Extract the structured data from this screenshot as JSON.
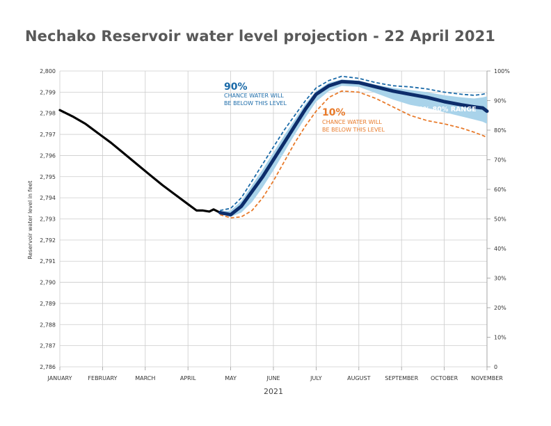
{
  "chart_data": {
    "type": "line",
    "title": "Nechako Reservoir water level projection - 22 April 2021",
    "xlabel": "2021",
    "ylabel": "Reservoir water level in feet",
    "ylim": [
      2786,
      2800
    ],
    "yticks": [
      "2,800",
      "2,799",
      "2,798",
      "2,797",
      "2,796",
      "2,795",
      "2,794",
      "2,793",
      "2,792",
      "2,791",
      "2,790",
      "2,789",
      "2,788",
      "2,787",
      "2,786"
    ],
    "y2ticks": [
      "100%",
      "90%",
      "80%",
      "70%",
      "60%",
      "50%",
      "40%",
      "30%",
      "20%",
      "10%",
      "0"
    ],
    "x_month_labels": [
      "JANUARY",
      "FEBRUARY",
      "MARCH",
      "APRIL",
      "MAY",
      "JUNE",
      "JULY",
      "AUGUST",
      "SEPTEMBER",
      "OCTOBER",
      "NOVEMBER"
    ],
    "grid": true,
    "annotations": {
      "p90_big": "90%",
      "p90_line1": "CHANCE WATER WILL",
      "p90_line2": "BE BELOW THIS LEVEL",
      "p10_big": "10%",
      "p10_line1": "CHANCE WATER WILL",
      "p10_line2": "BE BELOW THIS LEVEL",
      "range": "20%-80% RANGE"
    },
    "colors": {
      "observed": "#000000",
      "median": "#0d2d6b",
      "p90": "#1a6aa8",
      "p10": "#e87a2a",
      "band": "#a9d3ea",
      "grid": "#cccccc"
    },
    "series": [
      {
        "key": "observed",
        "x": [
          0,
          0.3,
          0.6,
          0.9,
          1.2,
          1.5,
          1.8,
          2.1,
          2.4,
          2.7,
          3.0,
          3.2,
          3.35,
          3.5,
          3.6,
          3.75
        ],
        "values": [
          2798.15,
          2797.85,
          2797.5,
          2797.05,
          2796.6,
          2796.1,
          2795.6,
          2795.1,
          2794.6,
          2794.15,
          2793.7,
          2793.4,
          2793.4,
          2793.35,
          2793.45,
          2793.3
        ]
      },
      {
        "key": "median",
        "x": [
          3.75,
          4.0,
          4.25,
          4.5,
          4.75,
          5.0,
          5.25,
          5.5,
          5.75,
          6.0,
          6.3,
          6.6,
          7.0,
          7.4,
          7.8,
          8.2,
          8.6,
          9.0,
          9.4,
          9.7,
          9.9,
          10.0
        ],
        "values": [
          2793.3,
          2793.2,
          2793.6,
          2794.3,
          2795.0,
          2795.8,
          2796.6,
          2797.4,
          2798.2,
          2798.9,
          2799.3,
          2799.5,
          2799.45,
          2799.25,
          2799.05,
          2798.9,
          2798.75,
          2798.55,
          2798.4,
          2798.3,
          2798.25,
          2798.1
        ]
      },
      {
        "key": "p90",
        "x": [
          3.75,
          4.0,
          4.25,
          4.5,
          4.75,
          5.0,
          5.25,
          5.5,
          5.75,
          6.0,
          6.3,
          6.6,
          7.0,
          7.4,
          7.8,
          8.2,
          8.6,
          9.0,
          9.4,
          9.7,
          9.9,
          10.0
        ],
        "values": [
          2793.4,
          2793.5,
          2794.0,
          2794.8,
          2795.6,
          2796.4,
          2797.2,
          2797.9,
          2798.6,
          2799.2,
          2799.55,
          2799.75,
          2799.65,
          2799.45,
          2799.3,
          2799.25,
          2799.15,
          2799.0,
          2798.9,
          2798.85,
          2798.9,
          2798.95
        ]
      },
      {
        "key": "p10",
        "x": [
          3.75,
          4.0,
          4.25,
          4.5,
          4.75,
          5.0,
          5.25,
          5.5,
          5.75,
          6.0,
          6.3,
          6.6,
          7.0,
          7.4,
          7.8,
          8.2,
          8.6,
          9.0,
          9.4,
          9.7,
          9.9,
          10.0
        ],
        "values": [
          2793.2,
          2793.05,
          2793.1,
          2793.4,
          2794.0,
          2794.8,
          2795.7,
          2796.6,
          2797.4,
          2798.1,
          2798.75,
          2799.05,
          2799.0,
          2798.7,
          2798.3,
          2797.9,
          2797.65,
          2797.5,
          2797.3,
          2797.1,
          2796.95,
          2796.85
        ]
      },
      {
        "key": "band_upper",
        "x": [
          3.75,
          4.0,
          4.25,
          4.5,
          4.75,
          5.0,
          5.25,
          5.5,
          5.75,
          6.0,
          6.3,
          6.6,
          7.0,
          7.4,
          7.8,
          8.2,
          8.6,
          9.0,
          9.4,
          9.7,
          9.9,
          10.0
        ],
        "values": [
          2793.35,
          2793.4,
          2793.85,
          2794.6,
          2795.35,
          2796.15,
          2796.95,
          2797.7,
          2798.45,
          2799.05,
          2799.45,
          2799.6,
          2799.55,
          2799.35,
          2799.2,
          2799.1,
          2799.0,
          2798.85,
          2798.75,
          2798.7,
          2798.75,
          2798.8
        ]
      },
      {
        "key": "band_lower",
        "x": [
          3.75,
          4.0,
          4.25,
          4.5,
          4.75,
          5.0,
          5.25,
          5.5,
          5.75,
          6.0,
          6.3,
          6.6,
          7.0,
          7.4,
          7.8,
          8.2,
          8.6,
          9.0,
          9.4,
          9.7,
          9.9,
          10.0
        ],
        "values": [
          2793.25,
          2793.1,
          2793.3,
          2793.8,
          2794.5,
          2795.3,
          2796.15,
          2797.0,
          2797.8,
          2798.55,
          2799.05,
          2799.3,
          2799.25,
          2798.95,
          2798.65,
          2798.4,
          2798.25,
          2798.05,
          2797.85,
          2797.7,
          2797.6,
          2797.5
        ]
      }
    ]
  }
}
